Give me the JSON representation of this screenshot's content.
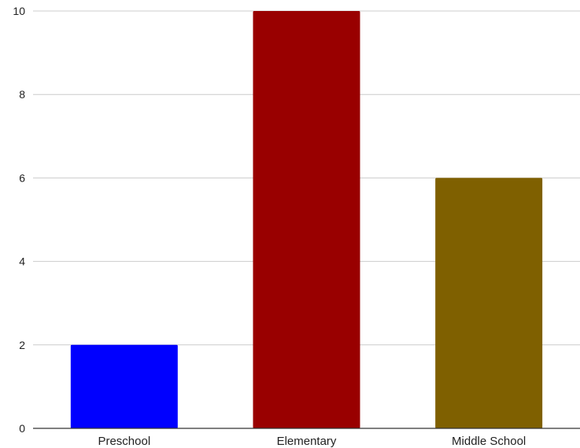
{
  "chart_data": {
    "type": "bar",
    "title": "",
    "xlabel": "",
    "ylabel": "",
    "categories": [
      "Preschool",
      "Elementary",
      "Middle School"
    ],
    "values": [
      2,
      10,
      6
    ],
    "colors": [
      "#0000ff",
      "#990000",
      "#7f6000"
    ],
    "ylim": [
      0,
      10
    ],
    "yticks": [
      0,
      2,
      4,
      6,
      8,
      10
    ],
    "grid": true,
    "legend": "none"
  }
}
